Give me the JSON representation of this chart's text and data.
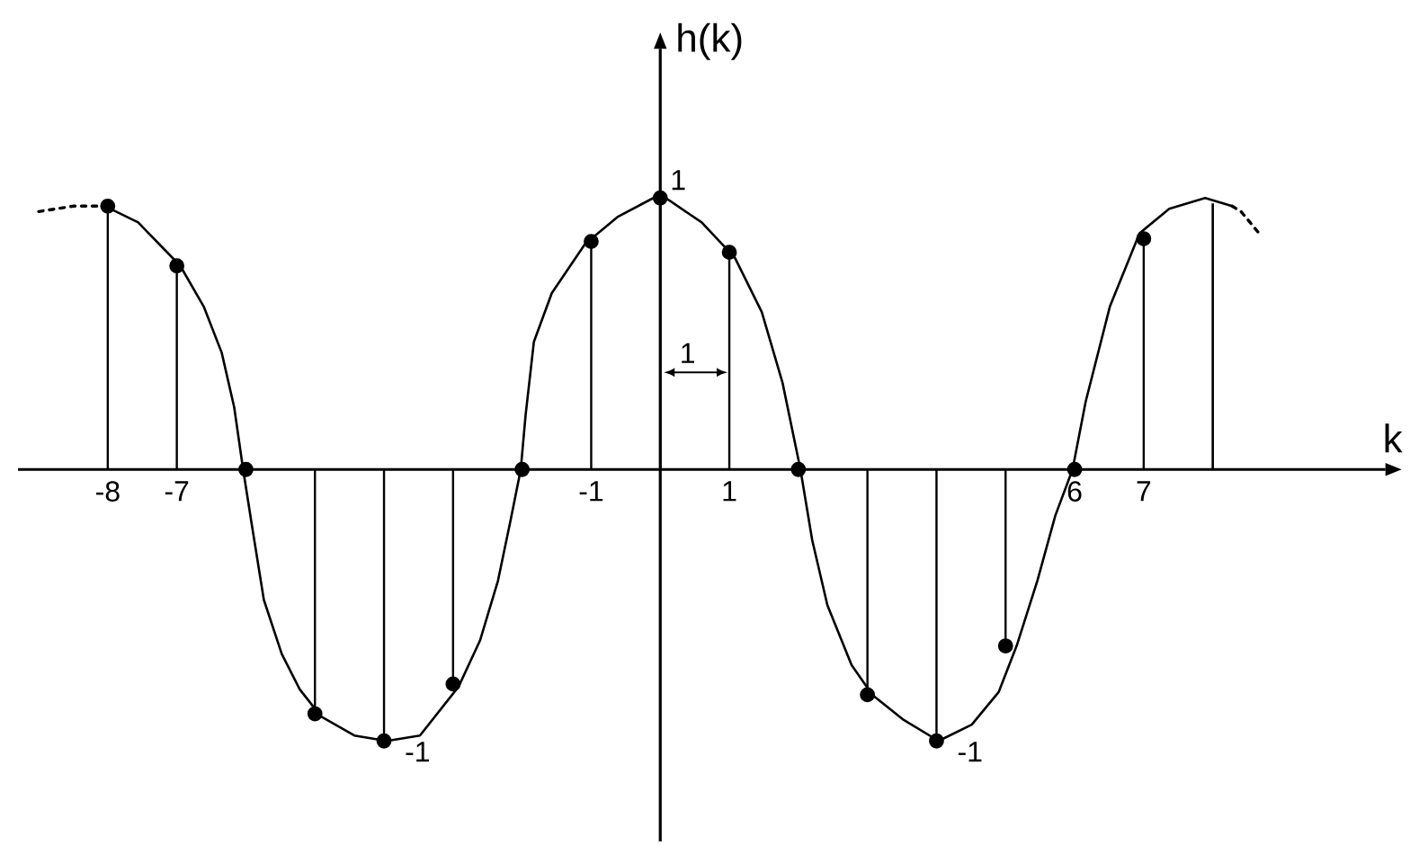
{
  "chart_data": {
    "type": "lollipop",
    "xlabel": "k",
    "ylabel": "h(k)",
    "xlim": [
      -9.3,
      10.5
    ],
    "xticks": [
      -8,
      -7,
      -1,
      1,
      6,
      7
    ],
    "tick_labels": "x",
    "annotations": [
      "1"
    ],
    "series": [
      {
        "color": "#000000",
        "marker": "circle",
        "x": [
          -8,
          -7,
          -6,
          -5,
          -4,
          -3,
          -2,
          -1,
          0,
          1,
          2,
          3,
          4,
          5,
          6,
          7
        ],
        "values": [
          0.97,
          0.75,
          0,
          -0.9,
          -1,
          -0.79,
          0,
          0.84,
          1,
          0.8,
          0,
          -0.83,
          -1,
          -0.65,
          0,
          0.85
        ],
        "value_labels": [
          null,
          null,
          null,
          null,
          "-1",
          null,
          null,
          null,
          "1",
          null,
          null,
          null,
          "-1",
          null,
          null,
          null
        ]
      },
      {
        "type": "bar",
        "color": "#000000",
        "x": [
          8
        ],
        "values": [
          0.98
        ]
      },
      {
        "type": "line",
        "color": "#000000",
        "marker": "none",
        "line_style": "solid",
        "x": [
          -8.04,
          -7.56,
          -6.95,
          -6.61,
          -6.35,
          -6.17,
          -6.04,
          -5.91,
          -5.74,
          -5.48,
          -5.22,
          -4.91,
          -4.43,
          -3.96,
          -3.48,
          -2.92,
          -2.61,
          -2.35,
          -2.17,
          -2.02,
          -1.95,
          -1.83,
          -1.57,
          -1.09,
          -0.62,
          -0.1,
          0.08,
          0.6,
          1.08,
          1.47,
          1.77,
          2.03,
          2.2,
          2.42,
          2.77,
          3.07,
          3.51,
          4.03,
          4.51,
          4.9,
          5.16,
          5.46,
          5.72,
          5.97,
          6.16,
          6.51,
          6.94,
          7.37,
          7.89,
          8.28
        ],
        "values": [
          0.97,
          0.91,
          0.75,
          0.6,
          0.43,
          0.23,
          0,
          -0.21,
          -0.48,
          -0.68,
          -0.81,
          -0.91,
          -0.98,
          -1,
          -0.98,
          -0.8,
          -0.63,
          -0.41,
          -0.19,
          0,
          0.2,
          0.47,
          0.65,
          0.83,
          0.93,
          1,
          1,
          0.91,
          0.78,
          0.58,
          0.32,
          0,
          -0.26,
          -0.5,
          -0.72,
          -0.83,
          -0.92,
          -1,
          -0.94,
          -0.82,
          -0.65,
          -0.41,
          -0.17,
          0,
          0.25,
          0.6,
          0.87,
          0.96,
          1,
          0.97
        ]
      },
      {
        "type": "line",
        "color": "#000000",
        "marker": "none",
        "line_style": "dotted",
        "x": [
          -9.0,
          -8.5,
          -8.04
        ],
        "values": [
          0.95,
          0.97,
          0.97
        ]
      },
      {
        "type": "line",
        "color": "#000000",
        "marker": "none",
        "line_style": "dotted",
        "x": [
          8.28,
          8.41,
          8.54,
          8.67
        ],
        "values": [
          0.97,
          0.95,
          0.91,
          0.87
        ]
      }
    ]
  }
}
